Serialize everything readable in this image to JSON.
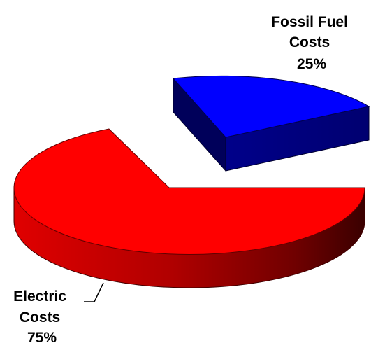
{
  "chart_data": {
    "type": "pie",
    "style": "3d-exploded",
    "title": "",
    "slices": [
      {
        "label_lines": [
          "Fossil Fuel",
          "Costs"
        ],
        "percent_label": "25%",
        "value": 25,
        "color": "#0000FF",
        "side_color": "#000080",
        "exploded": true
      },
      {
        "label_lines": [
          "Electric",
          "Costs"
        ],
        "percent_label": "75%",
        "value": 75,
        "color": "#FF0000",
        "side_color": "#8B0000",
        "exploded": false
      }
    ],
    "legend": "none"
  }
}
